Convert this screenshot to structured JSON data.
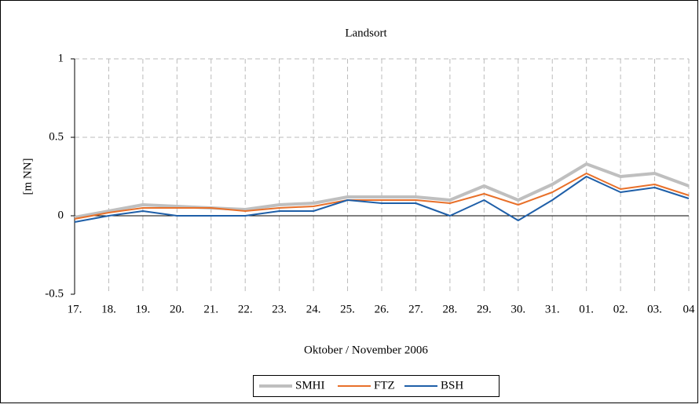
{
  "chart_data": {
    "type": "line",
    "title": "Landsort",
    "x_label": "Oktober / November 2006",
    "y_label": "[m NN]",
    "categories": [
      "17.",
      "18.",
      "19.",
      "20.",
      "21.",
      "22.",
      "23.",
      "24.",
      "25.",
      "26.",
      "27.",
      "28.",
      "29.",
      "30.",
      "31.",
      "01.",
      "02.",
      "03.",
      "04"
    ],
    "series": [
      {
        "name": "SMHI",
        "color": "#bfbfbf",
        "values": [
          -0.01,
          0.03,
          0.07,
          0.06,
          0.05,
          0.04,
          0.07,
          0.08,
          0.12,
          0.12,
          0.12,
          0.1,
          0.19,
          0.1,
          0.2,
          0.33,
          0.25,
          0.27,
          0.19
        ]
      },
      {
        "name": "FTZ",
        "color": "#e8702a",
        "values": [
          -0.02,
          0.02,
          0.05,
          0.05,
          0.05,
          0.03,
          0.05,
          0.06,
          0.1,
          0.1,
          0.1,
          0.08,
          0.14,
          0.07,
          0.15,
          0.27,
          0.17,
          0.2,
          0.13
        ]
      },
      {
        "name": "BSH",
        "color": "#1f5fa8",
        "values": [
          -0.04,
          0.0,
          0.03,
          0.0,
          0.0,
          0.0,
          0.03,
          0.03,
          0.1,
          0.08,
          0.08,
          0.0,
          0.1,
          -0.03,
          0.1,
          0.25,
          0.15,
          0.18,
          0.11
        ]
      }
    ],
    "ylim": [
      -0.5,
      1
    ],
    "yticks": [
      -0.5,
      0,
      0.5,
      1
    ],
    "grid": true,
    "legend": "bottom"
  }
}
